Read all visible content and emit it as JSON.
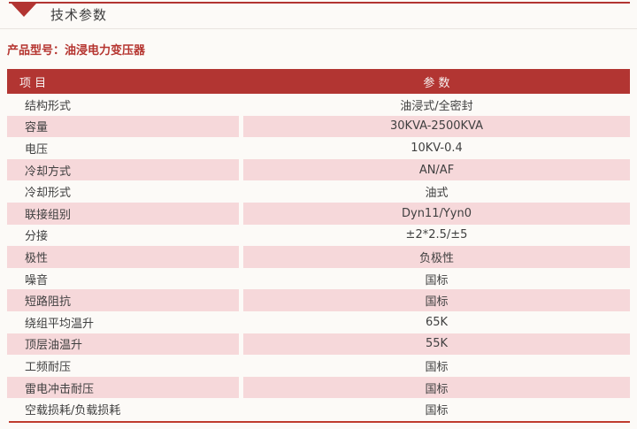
{
  "header": {
    "title": "技术参数",
    "triangle_icon": "red-down-triangle",
    "accent_color": "#b23532"
  },
  "product_model": {
    "label": "产品型号",
    "colon": "：",
    "value": "油浸电力变压器",
    "text_color": "#b5342f"
  },
  "table": {
    "columns": [
      "项 目",
      "参 数"
    ],
    "header_bg_color": "#b23532",
    "alt_row_color": "#f6d8da",
    "rows": [
      {
        "item": "结构形式",
        "value": "油浸式/全密封"
      },
      {
        "item": "容量",
        "value": "30KVA-2500KVA"
      },
      {
        "item": "电压",
        "value": "10KV-0.4"
      },
      {
        "item": "冷却方式",
        "value": "AN/AF"
      },
      {
        "item": "冷却形式",
        "value": "油式"
      },
      {
        "item": "联接组别",
        "value": "Dyn11/Yyn0"
      },
      {
        "item": "分接",
        "value": "±2*2.5/±5"
      },
      {
        "item": "极性",
        "value": "负极性"
      },
      {
        "item": "噪音",
        "value": "国标"
      },
      {
        "item": "短路阻抗",
        "value": "国标"
      },
      {
        "item": "绕组平均温升",
        "value": "65K"
      },
      {
        "item": "顶层油温升",
        "value": "55K"
      },
      {
        "item": "工频耐压",
        "value": "国标"
      },
      {
        "item": "雷电冲击耐压",
        "value": "国标"
      },
      {
        "item": "空载损耗/负载损耗",
        "value": "国标"
      }
    ]
  }
}
